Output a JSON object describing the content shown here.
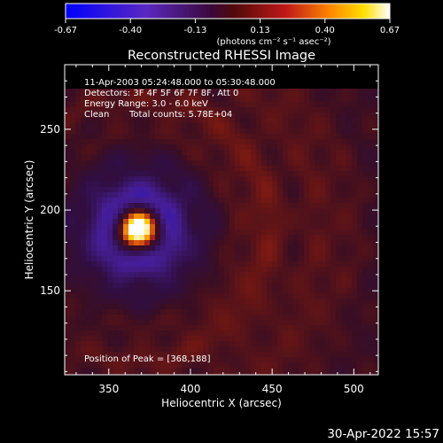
{
  "colorbar": {
    "ticks": [
      "-0.67",
      "-0.40",
      "-0.13",
      "0.13",
      "0.40",
      "0.67"
    ],
    "units": "(photons cm⁻² s⁻¹ asec⁻²)",
    "min": -0.67,
    "max": 0.67
  },
  "title": "Reconstructed RHESSI Image",
  "info": {
    "line1": "11-Apr-2003 05:24:48.000 to 05:30:48.000",
    "line2": "Detectors: 3F 4F 5F 6F 7F 8F, Att 0",
    "line3": "Energy Range: 3.0 - 6.0 keV",
    "line4_left": "Clean",
    "line4_right": "Total counts: 5.78E+04"
  },
  "peak_label": "Position of Peak = [368,188]",
  "footer_timestamp": "30-Apr-2022 15:57",
  "chart_data": {
    "type": "heatmap",
    "title": "Reconstructed RHESSI Image",
    "xlabel": "Heliocentric X (arcsec)",
    "ylabel": "Heliocentric Y (arcsec)",
    "xlim": [
      323,
      515
    ],
    "ylim": [
      98,
      290
    ],
    "x_ticks": [
      350,
      400,
      450,
      500
    ],
    "y_ticks": [
      150,
      200,
      250
    ],
    "peak": {
      "x": 368,
      "y": 188
    },
    "colormap": "fire (blue-purple-red-yellow-white)"
  }
}
